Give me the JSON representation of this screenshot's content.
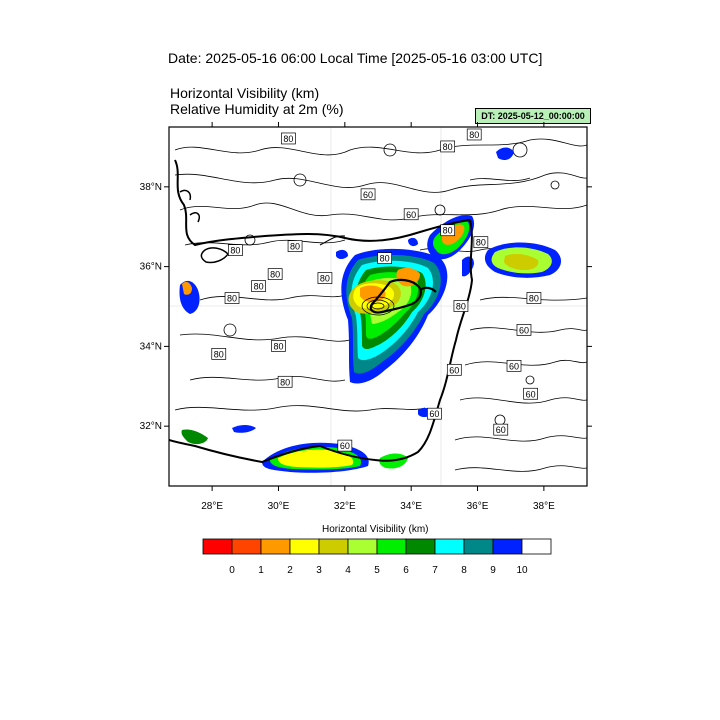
{
  "header": {
    "date_line": "Date: 2025-05-16  06:00 Local Time [2025-05-16  03:00 UTC]",
    "variable_1": "Horizontal Visibility   (km)",
    "variable_2": "Relative Humidity at 2m   (%)",
    "dt_badge": "DT: 2025-05-12_00:00:00"
  },
  "map": {
    "lon_range": [
      26.7,
      39.3
    ],
    "lat_range": [
      30.5,
      39.5
    ],
    "lon_ticks": [
      {
        "value": 28,
        "label": "28°E"
      },
      {
        "value": 30,
        "label": "30°E"
      },
      {
        "value": 32,
        "label": "32°E"
      },
      {
        "value": 34,
        "label": "34°E"
      },
      {
        "value": 36,
        "label": "36°E"
      },
      {
        "value": 38,
        "label": "38°E"
      }
    ],
    "lat_ticks": [
      {
        "value": 38,
        "label": "38°N"
      },
      {
        "value": 36,
        "label": "36°N"
      },
      {
        "value": 34,
        "label": "34°N"
      },
      {
        "value": 32,
        "label": "32°N"
      }
    ],
    "rh_contour_labels": [
      {
        "lon": 30.3,
        "lat": 39.2,
        "text": "80"
      },
      {
        "lon": 32.7,
        "lat": 37.8,
        "text": "60"
      },
      {
        "lon": 34.0,
        "lat": 37.3,
        "text": "60"
      },
      {
        "lon": 35.1,
        "lat": 39.0,
        "text": "80"
      },
      {
        "lon": 35.9,
        "lat": 39.3,
        "text": "80"
      },
      {
        "lon": 35.1,
        "lat": 36.9,
        "text": "80"
      },
      {
        "lon": 36.1,
        "lat": 36.6,
        "text": "80"
      },
      {
        "lon": 30.5,
        "lat": 36.5,
        "text": "80"
      },
      {
        "lon": 33.2,
        "lat": 36.2,
        "text": "80"
      },
      {
        "lon": 28.7,
        "lat": 36.4,
        "text": "80"
      },
      {
        "lon": 29.9,
        "lat": 35.8,
        "text": "80"
      },
      {
        "lon": 31.4,
        "lat": 35.7,
        "text": "80"
      },
      {
        "lon": 30.0,
        "lat": 34.0,
        "text": "80"
      },
      {
        "lon": 28.6,
        "lat": 35.2,
        "text": "80"
      },
      {
        "lon": 29.4,
        "lat": 35.5,
        "text": "80"
      },
      {
        "lon": 35.5,
        "lat": 35.0,
        "text": "80"
      },
      {
        "lon": 37.7,
        "lat": 35.2,
        "text": "80"
      },
      {
        "lon": 37.4,
        "lat": 34.4,
        "text": "60"
      },
      {
        "lon": 28.2,
        "lat": 33.8,
        "text": "80"
      },
      {
        "lon": 30.2,
        "lat": 33.1,
        "text": "80"
      },
      {
        "lon": 35.3,
        "lat": 33.4,
        "text": "60"
      },
      {
        "lon": 37.1,
        "lat": 33.5,
        "text": "60"
      },
      {
        "lon": 37.6,
        "lat": 32.8,
        "text": "60"
      },
      {
        "lon": 34.7,
        "lat": 32.3,
        "text": "60"
      },
      {
        "lon": 36.7,
        "lat": 31.9,
        "text": "60"
      },
      {
        "lon": 32.0,
        "lat": 31.5,
        "text": "60"
      }
    ]
  },
  "legend": {
    "title": "Horizontal Visibility  (km)",
    "colors": [
      "#ff0000",
      "#ff4400",
      "#ff9900",
      "#ffff00",
      "#cccc00",
      "#aaff33",
      "#00ee00",
      "#008800",
      "#00ffff",
      "#008888",
      "#0022ff",
      "#ffffff"
    ],
    "labels": [
      "0",
      "1",
      "2",
      "3",
      "4",
      "5",
      "6",
      "7",
      "8",
      "9",
      "10"
    ]
  }
}
